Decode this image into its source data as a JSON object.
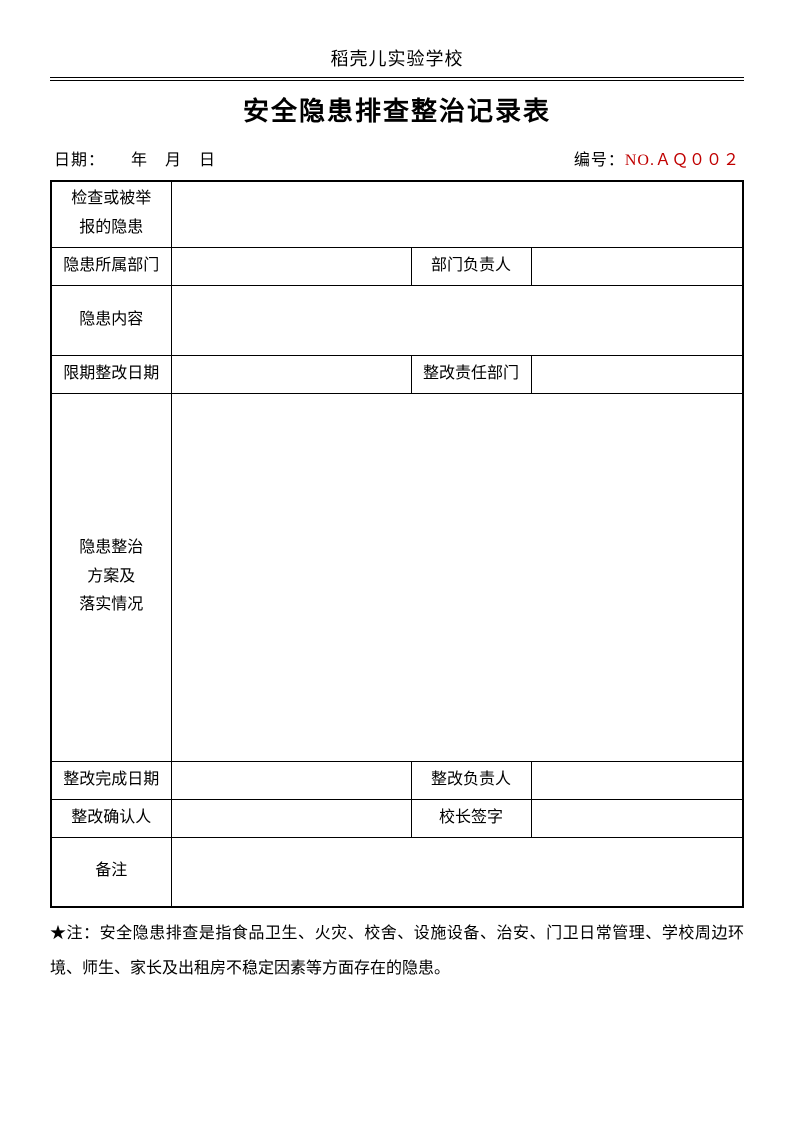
{
  "header": {
    "school": "稻壳儿实验学校",
    "title": "安全隐患排查整治记录表"
  },
  "meta": {
    "date_label": "日期：",
    "date_value": "　　年　月　日",
    "serial_label": "编号：",
    "serial_value": "NO.ＡＱ００２"
  },
  "table": {
    "rows": {
      "r1_label": "检查或被举报的隐患",
      "r2_label": "隐患所属部门",
      "r2_mid": "部门负责人",
      "r3_label": "隐患内容",
      "r4_label": "限期整改日期",
      "r4_mid": "整改责任部门",
      "r5_line1": "隐患整治",
      "r5_line2": "方案及",
      "r5_line3": "落实情况",
      "r6_label": "整改完成日期",
      "r6_mid": "整改负责人",
      "r7_label": "整改确认人",
      "r7_mid": "校长签字",
      "r8_label": "备注"
    },
    "heights": {
      "r1": 66,
      "r2": 38,
      "r3": 70,
      "r4": 38,
      "r5": 368,
      "r6": 38,
      "r7": 38,
      "r8": 70
    }
  },
  "footnote": "★注：安全隐患排查是指食品卫生、火灾、校舍、设施设备、治安、门卫日常管理、学校周边环境、师生、家长及出租房不稳定因素等方面存在的隐患。",
  "colors": {
    "serial": "#c00000",
    "text": "#000000",
    "background": "#ffffff"
  }
}
